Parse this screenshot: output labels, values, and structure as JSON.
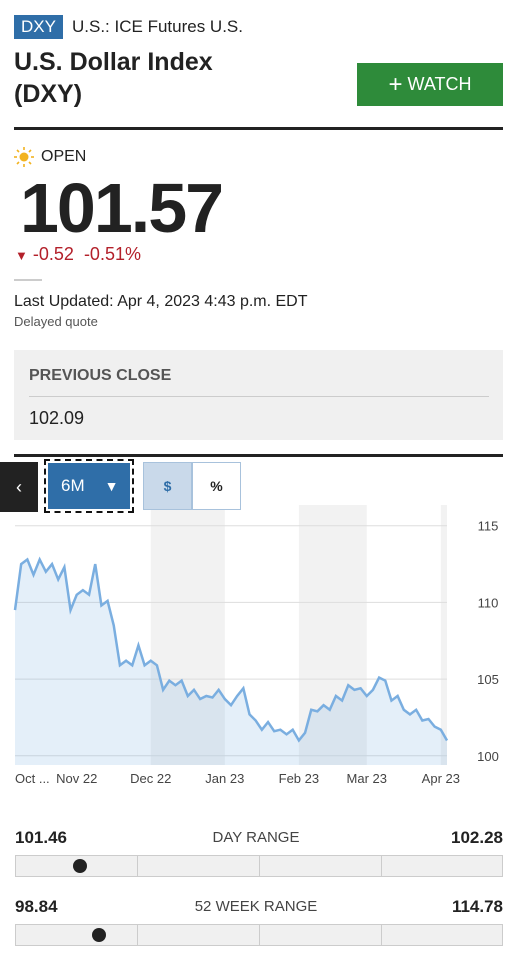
{
  "header": {
    "badge": "DXY",
    "exchange": "U.S.: ICE Futures U.S.",
    "title": "U.S. Dollar Index",
    "title_line2": "(DXY)",
    "watch_button": "WATCH"
  },
  "quote": {
    "status": "OPEN",
    "price": 101.57,
    "change": -0.52,
    "change_percent": "-0.51%",
    "last_updated": "Last Updated: Apr 4, 2023 4:43 p.m. EDT",
    "delay_note": "Delayed quote"
  },
  "previous_close": {
    "label": "PREVIOUS CLOSE",
    "value": 102.09
  },
  "chart_controls": {
    "range": "6M",
    "dollar": "$",
    "percent": "%"
  },
  "chart_data": {
    "type": "area",
    "color": "#7aaee0",
    "values": [
      109.5,
      112.5,
      112.8,
      111.8,
      112.8,
      112.0,
      112.5,
      111.5,
      112.3,
      109.5,
      110.5,
      110.8,
      110.5,
      112.5,
      109.8,
      110.1,
      108.5,
      105.9,
      106.2,
      105.9,
      107.2,
      105.9,
      106.2,
      105.9,
      104.3,
      104.9,
      104.6,
      104.9,
      103.9,
      104.3,
      103.7,
      103.9,
      103.8,
      104.3,
      103.7,
      103.3,
      103.9,
      104.4,
      102.7,
      102.3,
      101.7,
      102.2,
      101.6,
      101.7,
      101.4,
      101.7,
      101.0,
      101.5,
      103.0,
      102.9,
      103.3,
      103.0,
      103.9,
      103.6,
      104.6,
      104.3,
      104.4,
      103.9,
      104.3,
      105.1,
      104.9,
      103.6,
      103.9,
      103.0,
      102.7,
      103.0,
      102.3,
      102.4,
      101.9,
      101.7,
      101.0
    ],
    "xlim": [
      0,
      70
    ],
    "xticks": [
      {
        "value": 0,
        "label": "Oct ..."
      },
      {
        "value": 10,
        "label": "Nov 22"
      },
      {
        "value": 22,
        "label": "Dec 22"
      },
      {
        "value": 34,
        "label": "Jan 23"
      },
      {
        "value": 46,
        "label": "Feb 23"
      },
      {
        "value": 57,
        "label": "Mar 23"
      },
      {
        "value": 69,
        "label": "Apr 23"
      }
    ],
    "ylim": [
      99.4,
      115.7
    ],
    "yticks": [
      100,
      105,
      110,
      115
    ],
    "grid": true
  },
  "ranges": [
    {
      "low": 101.46,
      "label": "DAY RANGE",
      "high": 102.28
    },
    {
      "low": 98.84,
      "label": "52 WEEK RANGE",
      "high": 114.78
    }
  ]
}
